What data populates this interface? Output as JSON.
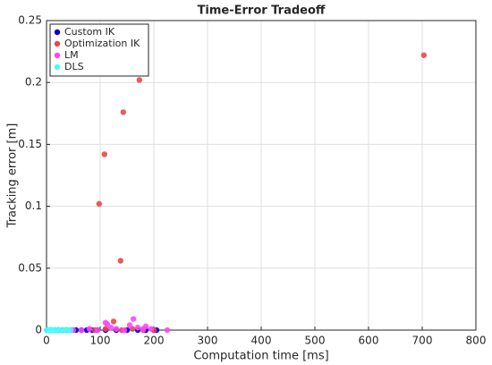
{
  "chart_data": {
    "type": "scatter",
    "title": "Time-Error Tradeoff",
    "x_label": "Computation time [ms]",
    "y_label": "Tracking error [m]",
    "xlim": [
      0,
      800
    ],
    "xticks": [
      0,
      100,
      200,
      300,
      400,
      500,
      600,
      700,
      800
    ],
    "ylim": [
      0,
      0.25
    ],
    "yticks": [
      0,
      0.05,
      0.1,
      0.15,
      0.2,
      0.25
    ],
    "grid": true,
    "legend": "upper-left",
    "series": [
      {
        "name": "Custom IK",
        "color": "#0000cc",
        "x": [
          2,
          8,
          15,
          22,
          30,
          38,
          45,
          55,
          65,
          75,
          85,
          95,
          110,
          130,
          150,
          170,
          185,
          200,
          205
        ],
        "values": [
          0,
          0,
          0,
          0,
          0,
          0,
          0,
          0,
          0,
          0,
          0,
          0,
          0,
          0,
          0,
          0,
          0,
          0,
          0
        ]
      },
      {
        "name": "Optimization IK",
        "color": "#e84848",
        "x": [
          703,
          173,
          143,
          108,
          98,
          138,
          125,
          90,
          110,
          140,
          160,
          180,
          200
        ],
        "values": [
          0.222,
          0.202,
          0.176,
          0.142,
          0.102,
          0.056,
          0.007,
          0,
          0.001,
          0,
          0.001,
          0,
          0
        ]
      },
      {
        "name": "LM",
        "color": "#ff44ff",
        "x": [
          5,
          20,
          35,
          50,
          65,
          80,
          95,
          110,
          113,
          120,
          130,
          145,
          155,
          162,
          170,
          180,
          185,
          195,
          225
        ],
        "values": [
          0,
          0,
          0,
          0,
          0,
          0.001,
          0,
          0.006,
          0.005,
          0.002,
          0.001,
          0,
          0.004,
          0.009,
          0.002,
          0.001,
          0.003,
          0.001,
          0
        ]
      },
      {
        "name": "DLS",
        "color": "#44ffff",
        "x": [
          0,
          3,
          6,
          9,
          12,
          15,
          20,
          25,
          30,
          35,
          40,
          45
        ],
        "values": [
          0,
          0,
          0,
          0,
          0,
          0,
          0,
          0,
          0,
          0,
          0,
          0
        ]
      }
    ]
  }
}
